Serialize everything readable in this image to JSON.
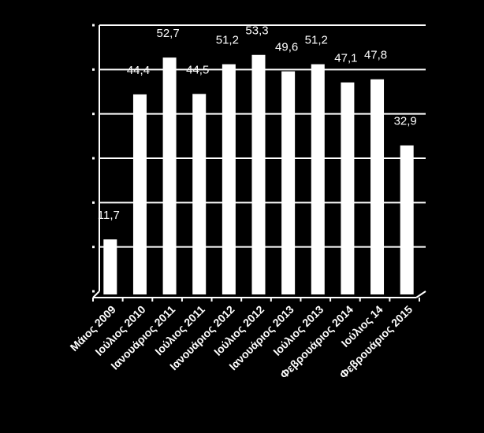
{
  "chart_data": {
    "type": "bar",
    "categories": [
      "Μάιος 2009",
      "Ιούλιος 2010",
      "Ιανουάριος 2011",
      "Ιούλιος 2011",
      "Ιανουάριος 2012",
      "Ιούλιος 2012",
      "Ιανουάριος 2013",
      "Ιούλιος 2013",
      "Φεβρουάριος 2014",
      "Ιούλιος 14",
      "Φεβρουάριος 2015"
    ],
    "values": [
      11.7,
      44.4,
      52.7,
      44.5,
      51.2,
      53.3,
      49.6,
      51.2,
      47.1,
      47.8,
      32.9
    ],
    "value_labels": [
      "11,7",
      "44,4",
      "52,7",
      "44,5",
      "51,2",
      "53,3",
      "49,6",
      "51,2",
      "47,1",
      "47,8",
      "32,9"
    ],
    "ylim": [
      0,
      60
    ],
    "grid": true,
    "colors": {
      "background": "#000000",
      "bar": "#ffffff",
      "grid": "#ffffff"
    }
  }
}
